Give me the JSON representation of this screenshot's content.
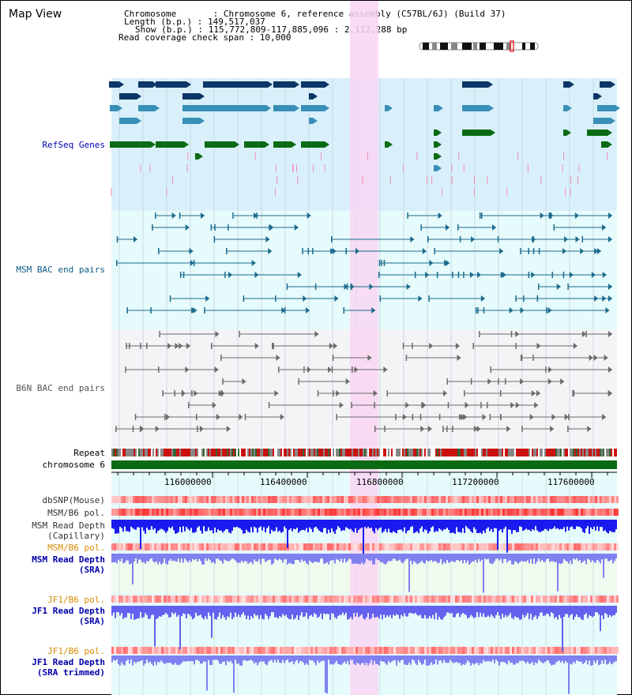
{
  "title": "Map View",
  "info": {
    "chromosome": "Chromosome       : Chromosome 6, reference assembly (C57BL/6J) (Build 37)",
    "length": "Length (b.p.) : 149,517,037",
    "show": "Show (b.p.) : 115,772,809-117,885,096 : 2,112,288 bp",
    "span": "Read coverage check span : 10,000"
  },
  "tracks": {
    "refseq": "RefSeq Genes",
    "msm_bac": "MSM BAC end pairs",
    "b6n_bac": "B6N BAC end pairs",
    "repeat": "Repeat",
    "chromosome": "chromosome 6",
    "dbsnp": "dbSNP(Mouse)",
    "msm_pol": "MSM/B6 pol.",
    "msm_depth_cap_1": "MSM Read Depth",
    "msm_depth_cap_2": "(Capillary)",
    "msm_pol2": "MSM/B6 pol.",
    "msm_depth_sra_1": "MSM Read Depth",
    "msm_depth_sra_2": "(SRA)",
    "jf1_pol": "JF1/B6 pol.",
    "jf1_depth_1": "JF1 Read Depth",
    "jf1_depth_2": "(SRA)",
    "jf1_pol2": "JF1/B6 pol.",
    "jf1_trim_1": "JF1 Read Depth",
    "jf1_trim_2": "(SRA trimmed)"
  },
  "axis": {
    "ticks": [
      "116000000",
      "116400000",
      "116800000",
      "117200000",
      "117600000"
    ]
  },
  "colors": {
    "refseq_bg": "#d9f0fb",
    "msm_bg": "#e6fbfb",
    "b6n_bg": "#f4f4f6",
    "highlight": "#f8d6f2",
    "dark_blue": "#0d3566",
    "mid_blue": "#3a8fb7",
    "green": "#0b6b14",
    "msm_label": "#0c5a85",
    "b6n_label": "#555555",
    "depth_blue": "#1a1aee",
    "light_depth": "#8080f0",
    "pol_orange": "#d48a00",
    "depth_label": "#0000aa"
  }
}
